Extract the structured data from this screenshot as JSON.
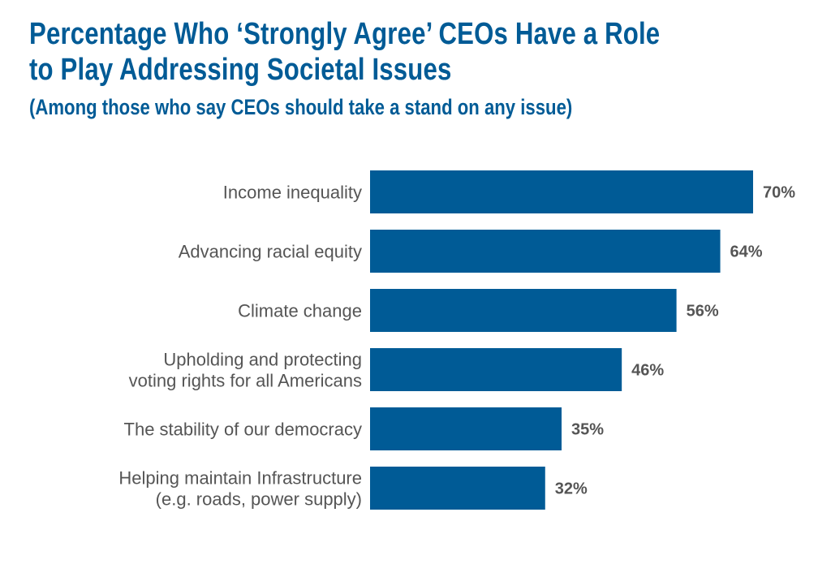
{
  "chart_data": {
    "type": "bar",
    "orientation": "horizontal",
    "title": "Percentage Who ‘Strongly Agree’ CEOs Have a Role to Play Addressing Societal Issues",
    "subtitle": "(Among those who say CEOs should take a stand on any issue)",
    "categories": [
      "Income inequality",
      "Advancing racial equity",
      "Climate change",
      "Upholding and protecting voting rights for all Americans",
      "The stability of our democracy",
      "Helping maintain Infrastructure (e.g. roads, power supply)"
    ],
    "category_lines": [
      [
        "Income inequality"
      ],
      [
        "Advancing racial equity"
      ],
      [
        "Climate change"
      ],
      [
        "Upholding and protecting",
        "voting rights for all Americans"
      ],
      [
        "The stability of our democracy"
      ],
      [
        "Helping maintain Infrastructure",
        "(e.g. roads, power supply)"
      ]
    ],
    "values": [
      70,
      64,
      56,
      46,
      35,
      32
    ],
    "value_labels": [
      "70%",
      "64%",
      "56%",
      "46%",
      "35%",
      "32%"
    ],
    "xlim": [
      0,
      70
    ],
    "grid": false,
    "legend": "none"
  },
  "colors": {
    "bar": "#005b96",
    "title": "#005b96",
    "label": "#555555"
  }
}
